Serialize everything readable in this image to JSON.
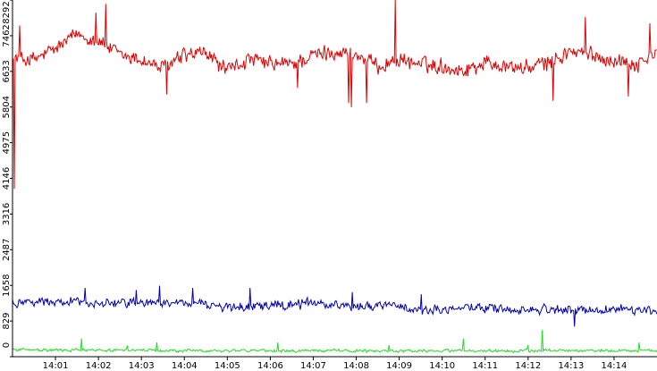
{
  "chart_data": {
    "type": "line",
    "title": "",
    "xlabel": "",
    "ylabel": "",
    "x_range": [
      "14:00:00",
      "14:15:00"
    ],
    "x_ticks": [
      "14:01",
      "14:02",
      "14:03",
      "14:04",
      "14:05",
      "14:06",
      "14:07",
      "14:08",
      "14:09",
      "14:10",
      "14:11",
      "14:12",
      "14:13",
      "14:14"
    ],
    "ylim": [
      0,
      8292
    ],
    "y_ticks": [
      "0",
      "829",
      "1658",
      "2487",
      "3316",
      "4146",
      "4975",
      "5804",
      "6633",
      "7462",
      "8292"
    ],
    "grid": false,
    "legend": "none",
    "samples_per_series": 720,
    "series": [
      {
        "color": "#e00000",
        "base": [
          6950,
          6900,
          7150,
          7500,
          7350,
          7000,
          6900,
          6700,
          7000,
          7050,
          6650,
          6900,
          6800,
          6800,
          7000,
          7100,
          7000,
          6750,
          6900,
          6800,
          6750,
          6650,
          6850,
          6750,
          6700,
          6850,
          7100,
          7000,
          6900,
          6800,
          7050
        ],
        "noise": 220,
        "spikes": [
          {
            "x": "14:00:03",
            "y": 3900
          },
          {
            "x": "14:00:10",
            "y": 7700
          },
          {
            "x": "14:01:57",
            "y": 8000
          },
          {
            "x": "14:02:10",
            "y": 8200
          },
          {
            "x": "14:03:35",
            "y": 6100
          },
          {
            "x": "14:06:38",
            "y": 6250
          },
          {
            "x": "14:07:49",
            "y": 5900
          },
          {
            "x": "14:07:53",
            "y": 5800
          },
          {
            "x": "14:08:15",
            "y": 5900
          },
          {
            "x": "14:08:55",
            "y": 8292
          },
          {
            "x": "14:12:35",
            "y": 5950
          },
          {
            "x": "14:13:20",
            "y": 7900
          },
          {
            "x": "14:14:20",
            "y": 6050
          },
          {
            "x": "14:14:50",
            "y": 7750
          }
        ]
      },
      {
        "color": "#0000b0",
        "base": [
          1250,
          1300,
          1250,
          1300,
          1200,
          1250,
          1300,
          1250,
          1250,
          1200,
          1150,
          1150,
          1200,
          1200,
          1250,
          1200,
          1200,
          1200,
          1150,
          1100,
          1100,
          1150,
          1150,
          1100,
          1100,
          1100,
          1100,
          1050,
          1100,
          1100,
          1100
        ],
        "noise": 130,
        "spikes": [
          {
            "x": "14:01:42",
            "y": 1600
          },
          {
            "x": "14:02:53",
            "y": 1550
          },
          {
            "x": "14:03:25",
            "y": 1650
          },
          {
            "x": "14:04:12",
            "y": 1600
          },
          {
            "x": "14:05:32",
            "y": 1600
          },
          {
            "x": "14:07:55",
            "y": 1500
          },
          {
            "x": "14:09:31",
            "y": 1450
          },
          {
            "x": "14:13:05",
            "y": 700
          }
        ]
      },
      {
        "color": "#22dd22",
        "base": [
          160,
          160,
          150,
          150,
          150,
          150,
          150,
          140,
          140,
          140,
          140,
          140,
          140,
          140,
          140,
          140,
          140,
          140,
          140,
          140,
          140,
          140,
          140,
          140,
          140,
          140,
          140,
          140,
          140,
          140,
          140
        ],
        "noise": 40,
        "spikes": [
          {
            "x": "14:01:37",
            "y": 420
          },
          {
            "x": "14:02:40",
            "y": 260
          },
          {
            "x": "14:03:22",
            "y": 330
          },
          {
            "x": "14:06:10",
            "y": 330
          },
          {
            "x": "14:08:46",
            "y": 270
          },
          {
            "x": "14:10:30",
            "y": 420
          },
          {
            "x": "14:12:00",
            "y": 270
          },
          {
            "x": "14:12:20",
            "y": 620
          },
          {
            "x": "14:14:35",
            "y": 330
          }
        ]
      }
    ]
  }
}
